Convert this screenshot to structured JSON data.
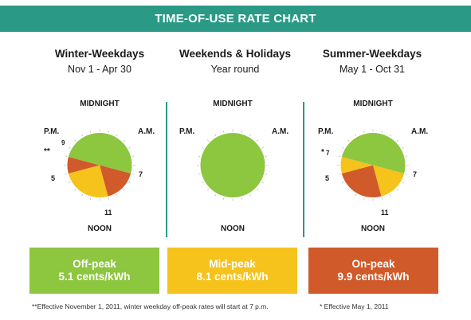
{
  "header": {
    "title": "TIME-OF-USE RATE CHART"
  },
  "columns": [
    {
      "title": "Winter-Weekdays",
      "subtitle": "Nov 1 - Apr 30",
      "top_label": "MIDNIGHT",
      "left_label": "P.M.",
      "right_label": "A.M.",
      "bottom_label": "NOON",
      "marker_note": "**",
      "bold_hours": {
        "left": "9",
        "right": "7",
        "bottom": "11",
        "left_low": "5"
      }
    },
    {
      "title": "Weekends & Holidays",
      "subtitle": "Year round",
      "top_label": "MIDNIGHT",
      "left_label": "P.M.",
      "right_label": "A.M.",
      "bottom_label": "NOON"
    },
    {
      "title": "Summer-Weekdays",
      "subtitle": "May 1 - Oct 31",
      "top_label": "MIDNIGHT",
      "left_label": "P.M.",
      "right_label": "A.M.",
      "bottom_label": "NOON",
      "marker_note": "*",
      "bold_hours": {
        "left": "7",
        "right": "7",
        "bottom": "11",
        "left_low": "5"
      }
    }
  ],
  "legend": [
    {
      "name": "Off-peak",
      "rate": "5.1 cents/kWh",
      "color": "#8dc63f"
    },
    {
      "name": "Mid-peak",
      "rate": "8.1 cents/kWh",
      "color": "#f6c21c"
    },
    {
      "name": "On-peak",
      "rate": "9.9 cents/kWh",
      "color": "#d05a29"
    }
  ],
  "footnotes": {
    "left": "**Effective November 1, 2011, winter weekday off-peak rates will start at 7 p.m.",
    "right": "* Effective May 1, 2011"
  },
  "schedules": {
    "winter": [
      {
        "from": 0,
        "to": 7,
        "period": "off-peak"
      },
      {
        "from": 7,
        "to": 11,
        "period": "on-peak"
      },
      {
        "from": 11,
        "to": 17,
        "period": "mid-peak"
      },
      {
        "from": 17,
        "to": 19,
        "period": "on-peak"
      },
      {
        "from": 19,
        "to": 24,
        "period": "off-peak"
      }
    ],
    "weekend": [
      {
        "from": 0,
        "to": 24,
        "period": "off-peak"
      }
    ],
    "summer": [
      {
        "from": 0,
        "to": 7,
        "period": "off-peak"
      },
      {
        "from": 7,
        "to": 11,
        "period": "mid-peak"
      },
      {
        "from": 11,
        "to": 17,
        "period": "on-peak"
      },
      {
        "from": 17,
        "to": 19,
        "period": "mid-peak"
      },
      {
        "from": 19,
        "to": 24,
        "period": "off-peak"
      }
    ]
  },
  "colors": {
    "off-peak": "#8dc63f",
    "mid-peak": "#f6c21c",
    "on-peak": "#d05a29",
    "banner": "#2a9a86"
  }
}
